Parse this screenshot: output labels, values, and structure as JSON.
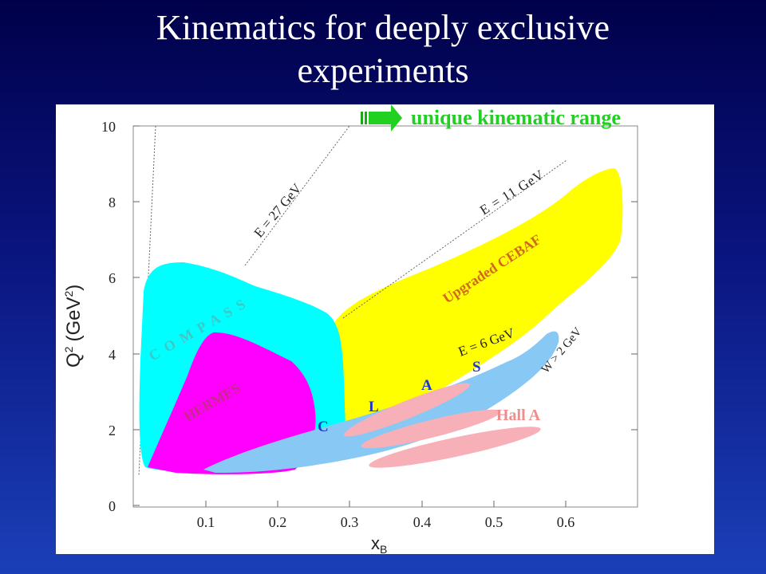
{
  "title": {
    "line1": "Kinematics for deeply exclusive",
    "line2": "experiments"
  },
  "callout": {
    "text": "unique kinematic range",
    "color": "#22d022"
  },
  "axes": {
    "ylabel_main": "Q",
    "ylabel_sup1": "2",
    "ylabel_unit": "(GeV",
    "ylabel_sup2": "2",
    "ylabel_close": ")",
    "xlabel_main": "x",
    "xlabel_sub": "B",
    "y_ticks": [
      "0",
      "2",
      "4",
      "6",
      "8",
      "10"
    ],
    "x_ticks": [
      "0.1",
      "0.2",
      "0.3",
      "0.4",
      "0.5",
      "0.6"
    ]
  },
  "labels": {
    "e27": "E = 27 GeV",
    "e11": "E = 11 GeV",
    "e6": "E = 6 GeV",
    "w2": "W > 2 GeV",
    "compass": "C O M P A S S",
    "hermes": "HERMES",
    "cebaf": "Upgraded CEBAF",
    "clas": [
      "C",
      "L",
      "A",
      "S"
    ],
    "halla": "Hall A"
  },
  "colors": {
    "compass": "#00ffff",
    "hermes": "#ff00ff",
    "cebaf": "#ffff00",
    "clas": "#87c8f4",
    "halla": "#f7b0b8",
    "label_orange": "#d2691e",
    "clas_text": "#1c38c8",
    "halla_text": "#f08c8c"
  }
}
